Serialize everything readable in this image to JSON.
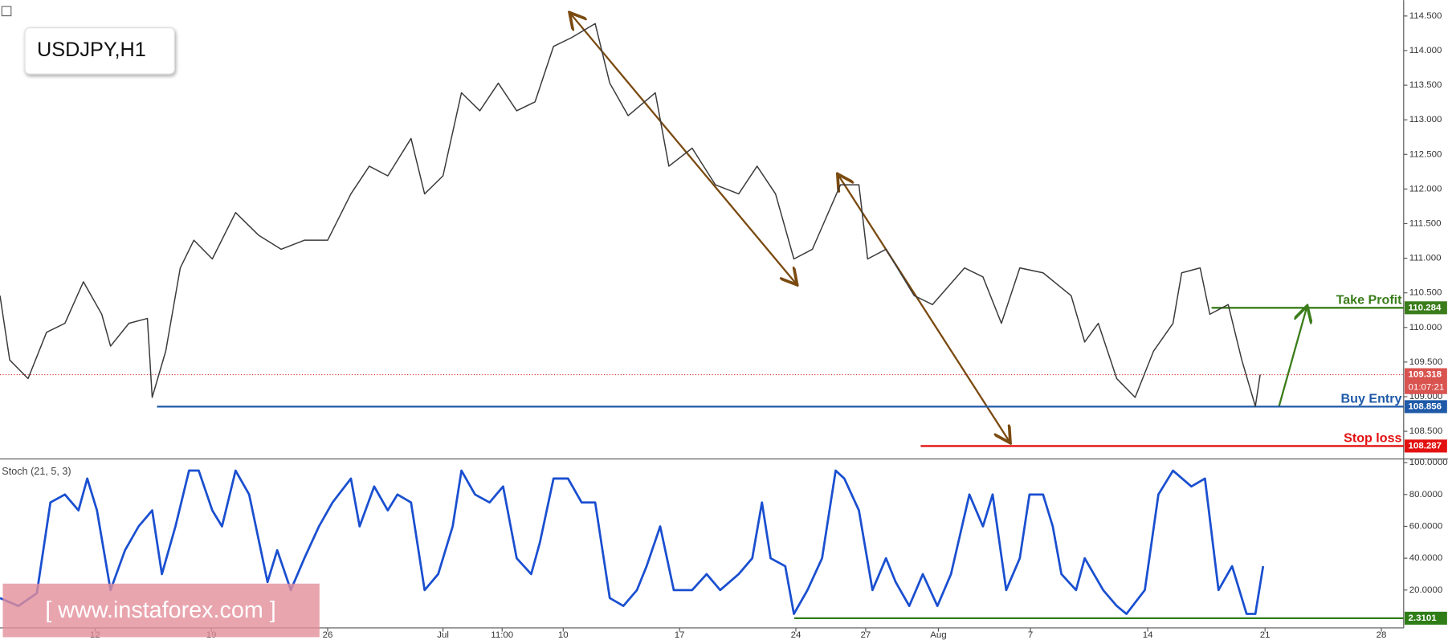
{
  "watermark": "[ www.instaforex.com ]",
  "chart_data": [
    {
      "type": "line",
      "title": "USDJPY,H1",
      "x": [
        0,
        10,
        29,
        48,
        67,
        86,
        105,
        114,
        133,
        152,
        157,
        171,
        186,
        200,
        219,
        243,
        267,
        290,
        314,
        338,
        362,
        381,
        400,
        424,
        438,
        457,
        476,
        495,
        514,
        533,
        552,
        571,
        590,
        614,
        629,
        648,
        676,
        690,
        714,
        738,
        762,
        781,
        800,
        819,
        838,
        867,
        886,
        895,
        914,
        943,
        962,
        995,
        1014,
        1033,
        1052,
        1076,
        1105,
        1119,
        1133,
        1152,
        1171,
        1190,
        1210,
        1219,
        1238,
        1248,
        1267,
        1281,
        1295,
        1300
      ],
      "series": [
        {
          "name": "USDJPY",
          "color": "#3b3b3b",
          "values": [
            110.46,
            109.53,
            109.26,
            109.93,
            110.06,
            110.66,
            110.19,
            109.73,
            110.06,
            110.13,
            108.99,
            109.66,
            110.86,
            111.26,
            110.99,
            111.66,
            111.33,
            111.13,
            111.26,
            111.26,
            111.93,
            112.33,
            112.19,
            112.73,
            111.93,
            112.19,
            113.39,
            113.13,
            113.53,
            113.13,
            113.26,
            114.06,
            114.19,
            114.39,
            113.53,
            113.06,
            113.39,
            112.33,
            112.59,
            112.06,
            111.93,
            112.33,
            111.93,
            110.99,
            111.13,
            112.06,
            112.06,
            110.99,
            111.13,
            110.46,
            110.33,
            110.86,
            110.73,
            110.06,
            110.86,
            110.79,
            110.46,
            109.79,
            110.06,
            109.26,
            108.99,
            109.66,
            110.06,
            110.79,
            110.86,
            110.19,
            110.33,
            109.53,
            108.86,
            109.318
          ]
        }
      ],
      "xlim": [
        0,
        1448
      ],
      "xticks": [
        {
          "value": 98,
          "label": "12"
        },
        {
          "value": 218,
          "label": "19"
        },
        {
          "value": 338,
          "label": "26"
        },
        {
          "value": 457,
          "label": "Jul"
        },
        {
          "value": 518,
          "label": "11:00"
        },
        {
          "value": 581,
          "label": "10"
        },
        {
          "value": 701,
          "label": "17"
        },
        {
          "value": 821,
          "label": "24"
        },
        {
          "value": 893,
          "label": "27"
        },
        {
          "value": 968,
          "label": "Aug"
        },
        {
          "value": 1063,
          "label": "7"
        },
        {
          "value": 1184,
          "label": "14"
        },
        {
          "value": 1305,
          "label": "21"
        },
        {
          "value": 1425,
          "label": "28"
        }
      ],
      "ylim": [
        108.1,
        114.73
      ],
      "yticks": [
        {
          "value": 108.5,
          "label": "108.500"
        },
        {
          "value": 109,
          "label": "109.000"
        },
        {
          "value": 109.5,
          "label": "109.500"
        },
        {
          "value": 110,
          "label": "110.000"
        },
        {
          "value": 110.5,
          "label": "110.500"
        },
        {
          "value": 111,
          "label": "111.000"
        },
        {
          "value": 111.5,
          "label": "111.500"
        },
        {
          "value": 112,
          "label": "112.000"
        },
        {
          "value": 112.5,
          "label": "112.500"
        },
        {
          "value": 113,
          "label": "113.000"
        },
        {
          "value": 113.5,
          "label": "113.500"
        },
        {
          "value": 114,
          "label": "114.000"
        },
        {
          "value": 114.5,
          "label": "114.500"
        }
      ],
      "levels": [
        {
          "name": "Take Profit",
          "value": 110.284,
          "color": "#3a7d1a"
        },
        {
          "name": "Buy Entry",
          "value": 108.856,
          "color": "#1f5aa8"
        },
        {
          "name": "Stop loss",
          "value": 108.287,
          "color": "#e31010"
        }
      ],
      "last_price": 109.318,
      "countdown": "01:07:21",
      "grid": false
    },
    {
      "type": "line",
      "title": "Stoch (21, 5, 3)",
      "x": [
        0,
        19,
        38,
        52,
        67,
        81,
        90,
        100,
        114,
        129,
        143,
        157,
        167,
        181,
        195,
        205,
        219,
        229,
        243,
        257,
        276,
        286,
        300,
        314,
        329,
        343,
        362,
        371,
        386,
        400,
        410,
        424,
        438,
        452,
        467,
        476,
        490,
        505,
        519,
        533,
        548,
        557,
        571,
        586,
        600,
        614,
        629,
        643,
        657,
        667,
        681,
        695,
        714,
        729,
        743,
        762,
        776,
        786,
        795,
        810,
        819,
        833,
        848,
        862,
        871,
        886,
        900,
        914,
        924,
        938,
        952,
        967,
        981,
        1000,
        1014,
        1024,
        1038,
        1052,
        1062,
        1076,
        1086,
        1095,
        1110,
        1119,
        1138,
        1152,
        1162,
        1181,
        1195,
        1210,
        1229,
        1243,
        1257,
        1271,
        1286,
        1295,
        1303
      ],
      "series": [
        {
          "name": "Stoch",
          "color": "#1a4fd0",
          "values": [
            15,
            10,
            18,
            75,
            80,
            70,
            90,
            70,
            20,
            45,
            60,
            70,
            30,
            60,
            95,
            95,
            70,
            60,
            95,
            80,
            25,
            45,
            20,
            40,
            60,
            75,
            90,
            60,
            85,
            70,
            80,
            75,
            20,
            30,
            60,
            95,
            80,
            75,
            85,
            40,
            30,
            50,
            90,
            90,
            75,
            75,
            15,
            10,
            20,
            35,
            60,
            20,
            20,
            30,
            20,
            30,
            40,
            75,
            40,
            35,
            5,
            20,
            40,
            95,
            90,
            70,
            20,
            40,
            25,
            10,
            30,
            10,
            30,
            80,
            60,
            80,
            20,
            40,
            80,
            80,
            60,
            30,
            20,
            40,
            20,
            10,
            5,
            20,
            80,
            95,
            85,
            90,
            20,
            35,
            5,
            5,
            35
          ]
        }
      ],
      "xlim": [
        0,
        1448
      ],
      "ylim": [
        -3.8,
        102.3
      ],
      "yticks": [
        {
          "value": 20,
          "label": "20.0000"
        },
        {
          "value": 40,
          "label": "40.0000"
        },
        {
          "value": 60,
          "label": "60.0000"
        },
        {
          "value": 80,
          "label": "80.0000"
        },
        {
          "value": 100,
          "label": "100.0000"
        }
      ],
      "levels": [
        {
          "value": 2.3101,
          "color": "#2e7d16"
        }
      ],
      "grid": false
    }
  ]
}
